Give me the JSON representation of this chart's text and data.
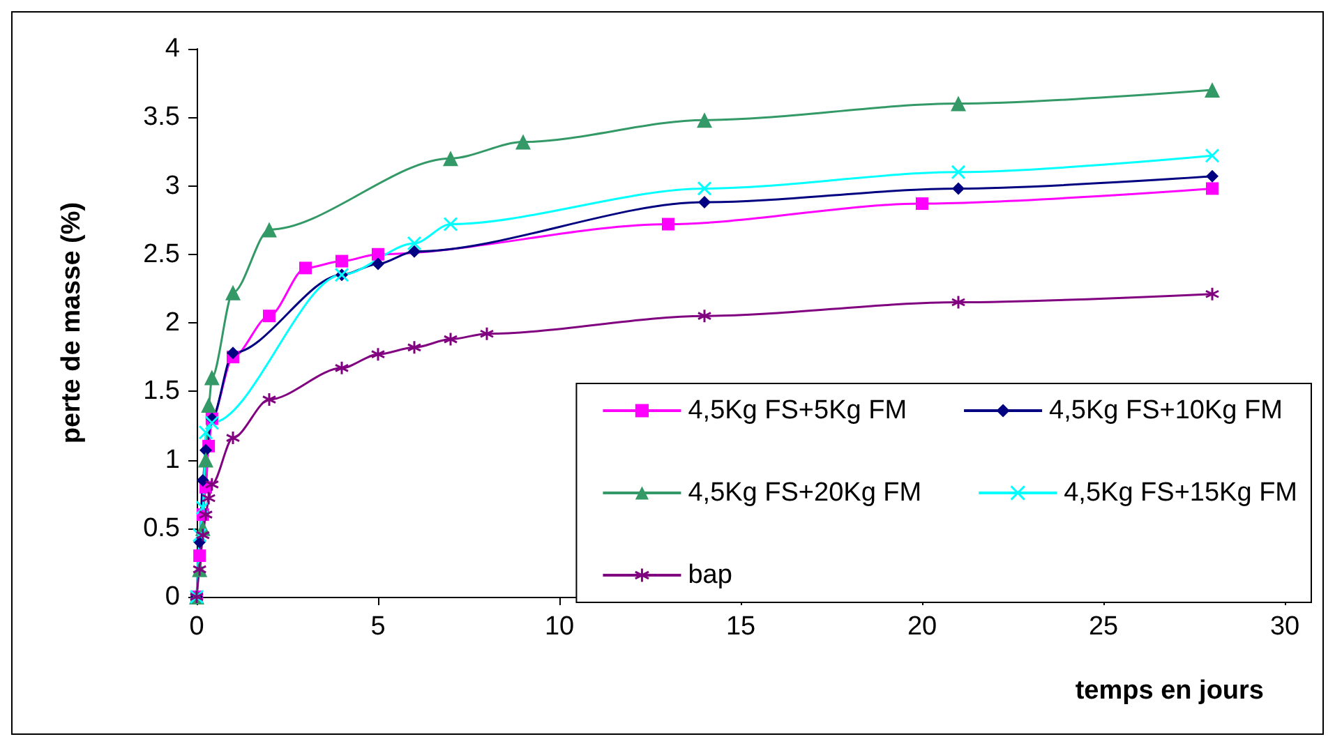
{
  "chart_data": {
    "type": "line",
    "xlabel": "temps en jours",
    "ylabel": "perte de masse (%)",
    "xlim": [
      0,
      30
    ],
    "xticks": [
      0,
      5,
      10,
      15,
      20,
      25,
      30
    ],
    "ylim": [
      0,
      4
    ],
    "yticks": [
      0,
      0.5,
      1,
      1.5,
      2,
      2.5,
      3,
      3.5,
      4
    ],
    "grid": false,
    "legend": "bottom right",
    "series": [
      {
        "name": "4,5Kg FS+5Kg FM",
        "color": "#ff00ff",
        "marker": "square",
        "x": [
          0,
          0.08,
          0.17,
          0.25,
          0.33,
          0.42,
          1,
          2,
          3,
          4,
          5,
          13,
          20,
          28
        ],
        "values": [
          0,
          0.3,
          0.6,
          0.8,
          1.1,
          1.3,
          1.75,
          2.05,
          2.4,
          2.45,
          2.5,
          2.72,
          2.87,
          2.98
        ]
      },
      {
        "name": "4,5Kg FS+10Kg FM",
        "color": "#000080",
        "marker": "diamond",
        "x": [
          0,
          0.08,
          0.17,
          0.25,
          0.42,
          1,
          4,
          5,
          6,
          14,
          21,
          28
        ],
        "values": [
          0,
          0.4,
          0.85,
          1.07,
          1.3,
          1.78,
          2.35,
          2.43,
          2.52,
          2.88,
          2.98,
          3.07
        ]
      },
      {
        "name": "4,5Kg FS+20Kg FM",
        "color": "#339966",
        "marker": "triangle",
        "x": [
          0,
          0.08,
          0.17,
          0.25,
          0.33,
          0.42,
          1,
          2,
          7,
          9,
          14,
          21,
          28
        ],
        "values": [
          0,
          0.2,
          0.5,
          1.0,
          1.4,
          1.6,
          2.22,
          2.68,
          3.2,
          3.32,
          3.48,
          3.6,
          3.7
        ]
      },
      {
        "name": "4,5Kg FS+15Kg FM",
        "color": "#00ffff",
        "marker": "cross",
        "x": [
          0,
          0.08,
          0.17,
          0.25,
          0.42,
          4,
          6,
          7,
          14,
          21,
          28
        ],
        "values": [
          0,
          0.45,
          0.65,
          1.2,
          1.27,
          2.35,
          2.58,
          2.72,
          2.98,
          3.1,
          3.22
        ]
      },
      {
        "name": "bap",
        "color": "#800080",
        "marker": "star",
        "x": [
          0,
          0.08,
          0.17,
          0.25,
          0.33,
          0.42,
          1,
          2,
          4,
          5,
          6,
          7,
          8,
          14,
          21,
          28
        ],
        "values": [
          0,
          0.2,
          0.45,
          0.6,
          0.72,
          0.82,
          1.16,
          1.44,
          1.67,
          1.77,
          1.82,
          1.88,
          1.92,
          2.05,
          2.15,
          2.21
        ]
      }
    ]
  }
}
